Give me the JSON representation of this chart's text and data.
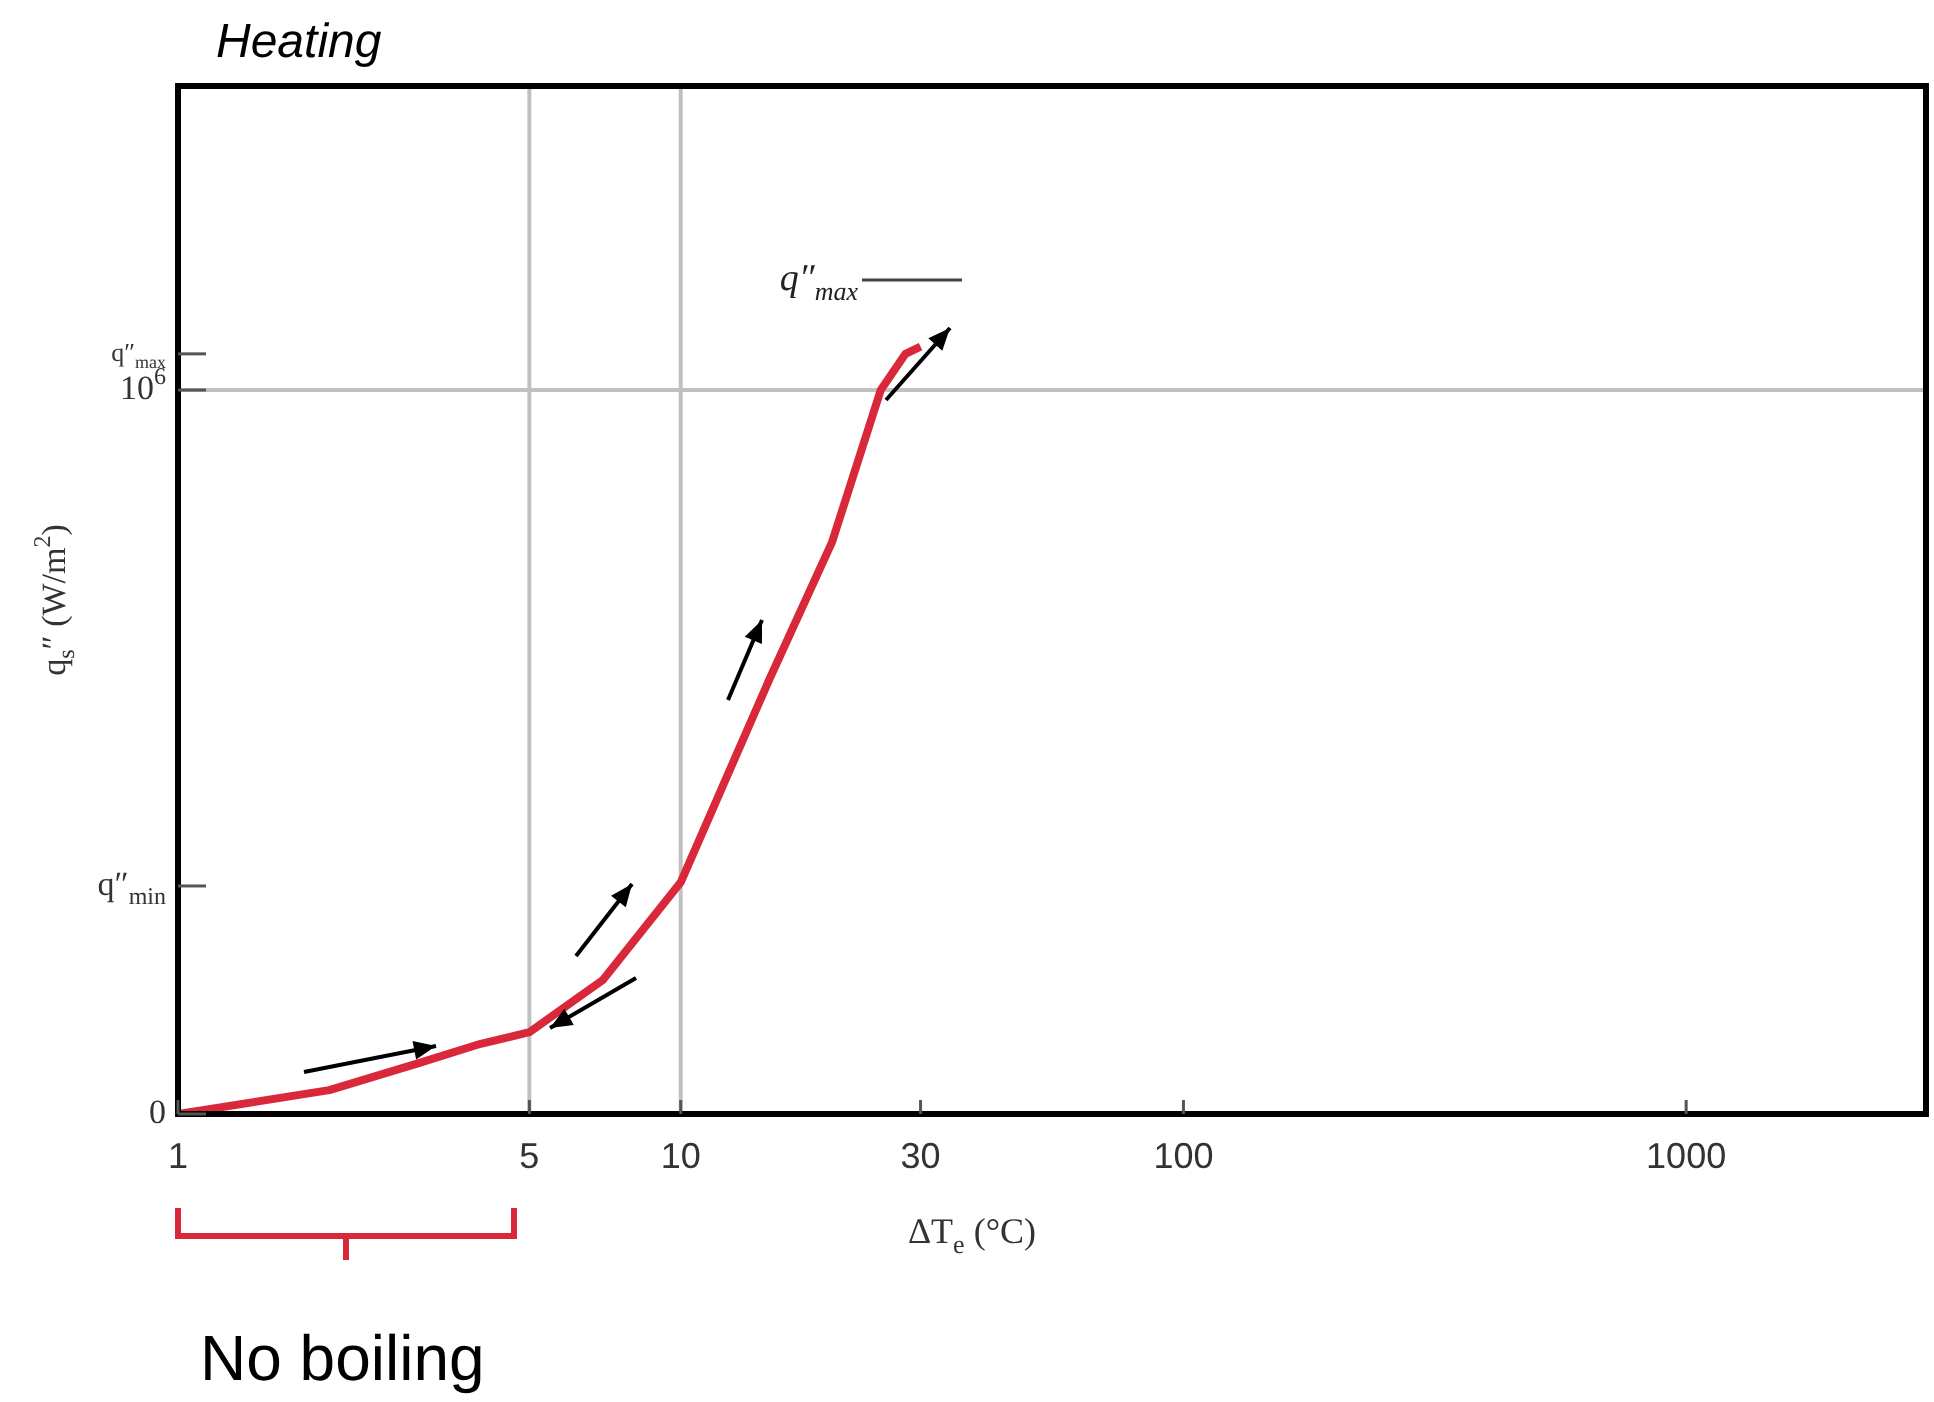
{
  "chart_data": {
    "type": "line",
    "title": "Heating",
    "xlabel": "ΔT$_{e}$ (°C)",
    "ylabel": "q$_{s}$″ (W/m$^{2}$)",
    "x": [
      1,
      2,
      3,
      4,
      5,
      7,
      10,
      15,
      20,
      25,
      28,
      30
    ],
    "series": [
      {
        "color": "#d9283a",
        "values": [
          0,
          33000,
          70000,
          97000,
          113000,
          185000,
          320000,
          600000,
          790000,
          1000000,
          1050000,
          1060000
        ]
      }
    ],
    "log": "x",
    "xlim": [
      1,
      3000
    ],
    "xticks": [
      1,
      5,
      10,
      30,
      100,
      1000
    ],
    "ylim": [
      0,
      1420000
    ],
    "yticks": [
      {
        "value": 0,
        "label": "0"
      },
      {
        "value": 315000,
        "label": "q″$_{min}$"
      },
      {
        "value": 1000000,
        "label": "10$^{6}$"
      },
      {
        "value": 1050000,
        "label": "q″$_{max}$"
      }
    ],
    "ref_lines": [
      {
        "axis": "x",
        "value": 5,
        "color": "#c0c0c0"
      },
      {
        "axis": "x",
        "value": 10,
        "color": "#c0c0c0"
      },
      {
        "axis": "y",
        "value": 1000000,
        "color": "#c0c0c0"
      }
    ],
    "marker": "none",
    "line_style": "solid",
    "annotations": [
      "q″$_{max}$",
      "No boiling"
    ]
  }
}
